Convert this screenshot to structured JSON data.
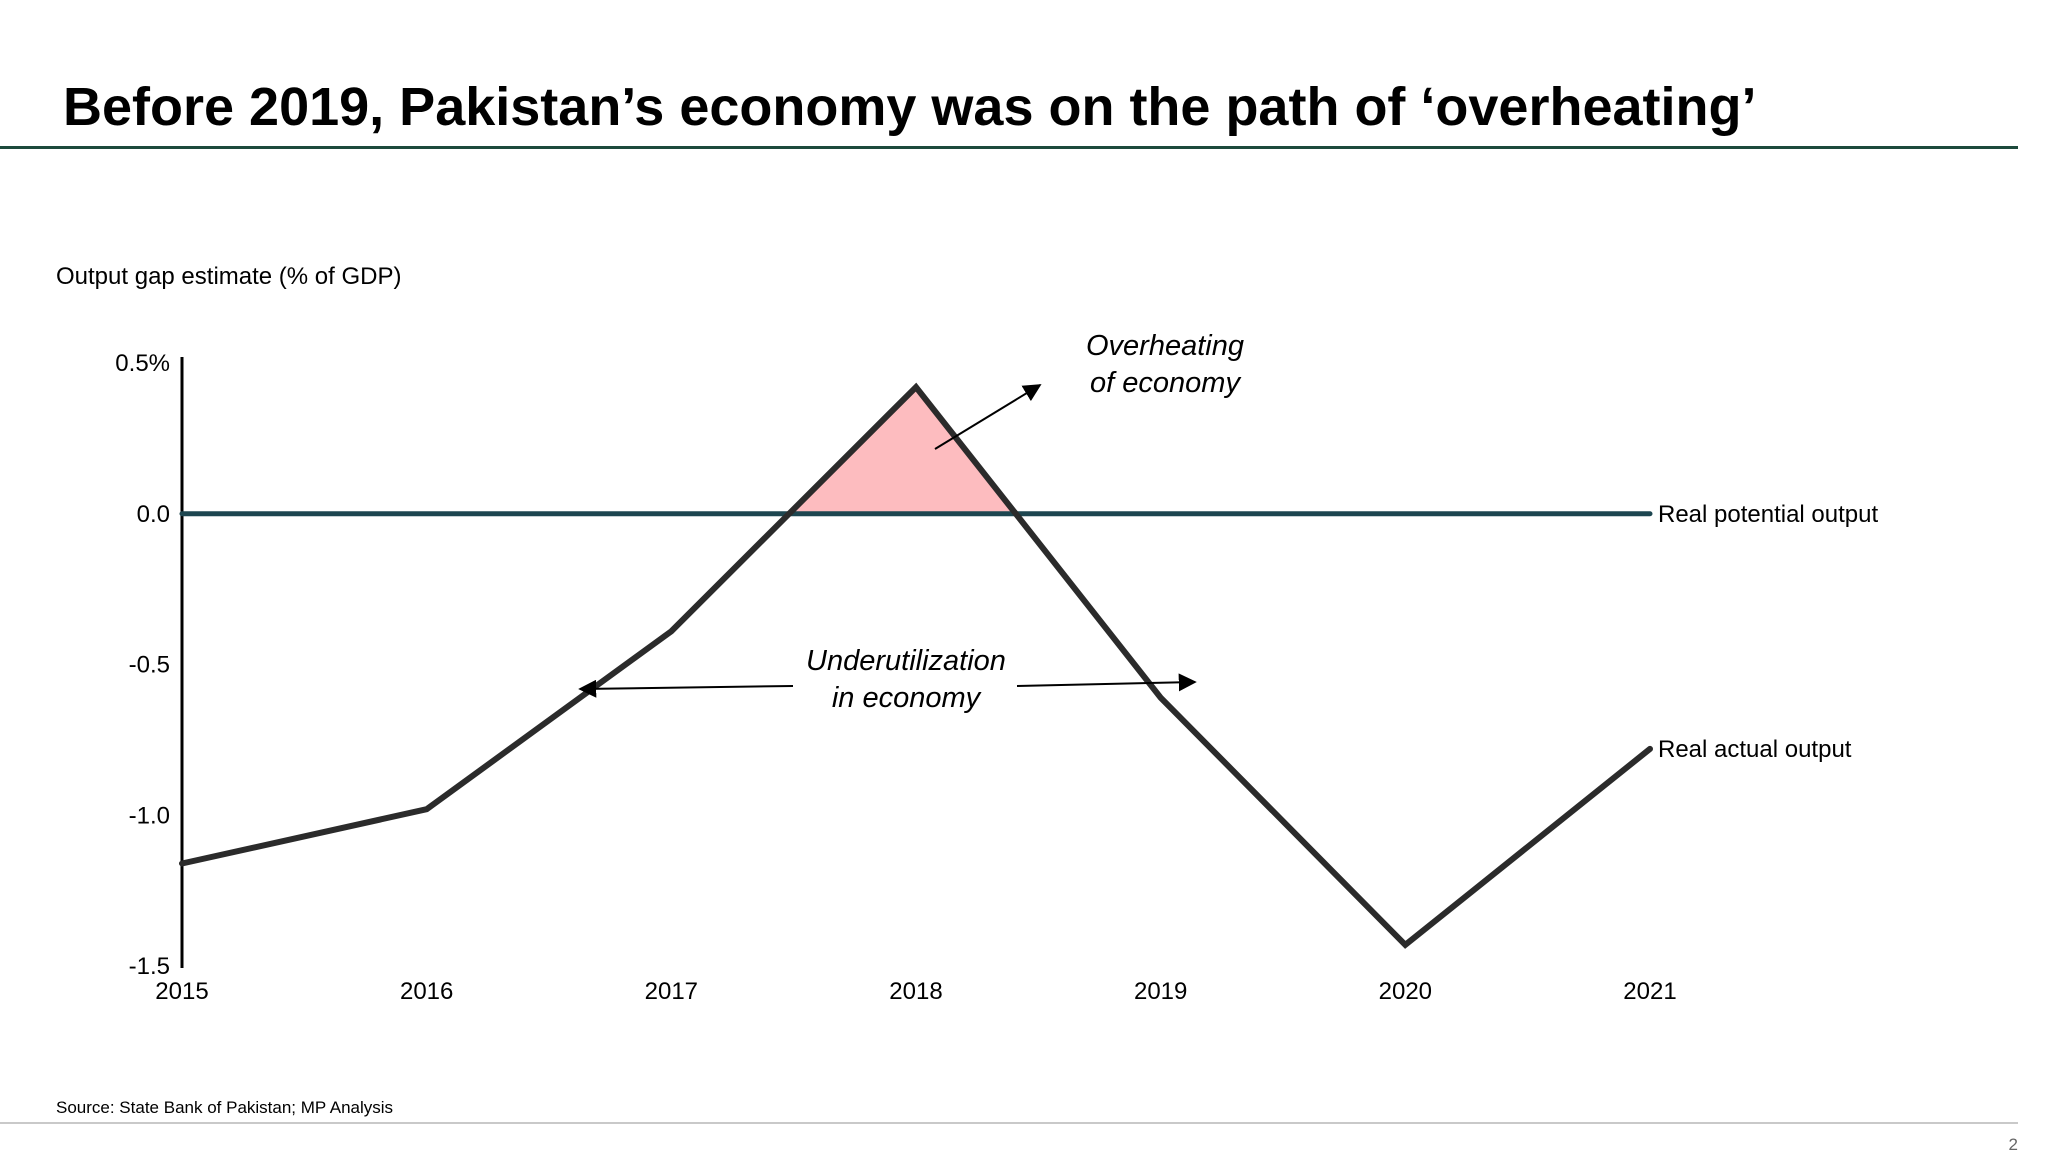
{
  "slide": {
    "title": "Before 2019, Pakistan’s economy was on the path of ‘overheating’",
    "source": "Source: State Bank of Pakistan; MP Analysis",
    "page_number": "2"
  },
  "chart_data": {
    "type": "line",
    "title": "",
    "subtitle": "Output gap estimate (% of GDP)",
    "xlabel": "",
    "ylabel": "",
    "categories": [
      "2015",
      "2016",
      "2017",
      "2018",
      "2019",
      "2020",
      "2021"
    ],
    "x": [
      2015,
      2016,
      2017,
      2018,
      2019,
      2020,
      2021
    ],
    "ylim": [
      -1.5,
      0.5
    ],
    "y_ticks": [
      {
        "value": 0.5,
        "label": "0.5%"
      },
      {
        "value": 0.0,
        "label": "0.0"
      },
      {
        "value": -0.5,
        "label": "-0.5"
      },
      {
        "value": -1.0,
        "label": "-1.0"
      },
      {
        "value": -1.5,
        "label": "-1.5"
      }
    ],
    "grid": false,
    "series": [
      {
        "name": "Real actual output",
        "values": [
          -1.16,
          -0.98,
          -0.39,
          0.42,
          -0.61,
          -1.43,
          -0.78
        ],
        "color": "#2b2b2b"
      },
      {
        "name": "Real potential output",
        "values": [
          0,
          0,
          0,
          0,
          0,
          0,
          0
        ],
        "color": "#1d4650"
      }
    ],
    "shaded_region": {
      "color": "#fdbcbf"
    },
    "annotations": [
      {
        "id": "overheating",
        "lines": [
          "Overheating",
          "of economy"
        ]
      },
      {
        "id": "underutilization",
        "lines": [
          "Underutilization",
          "in economy"
        ]
      }
    ]
  }
}
